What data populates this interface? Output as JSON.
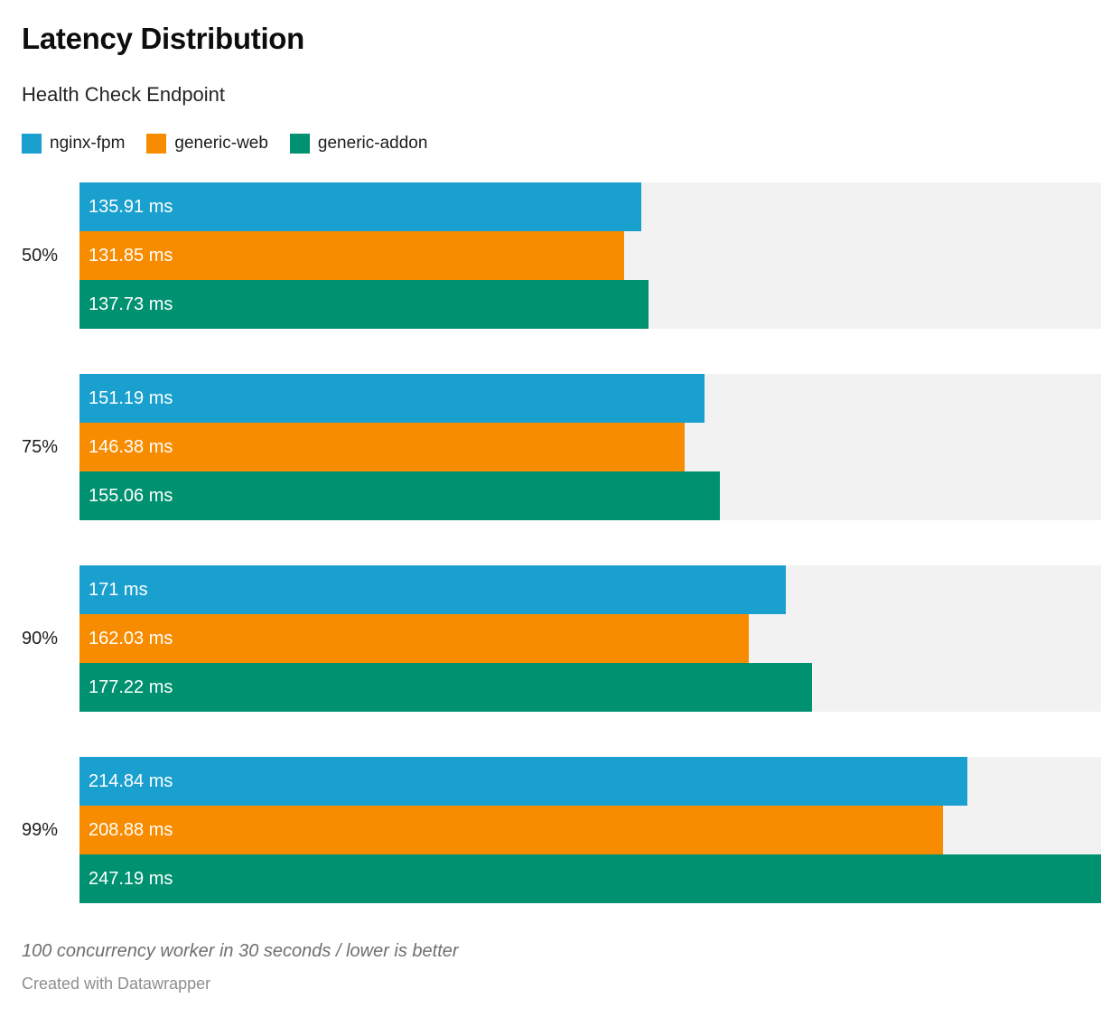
{
  "chart_data": {
    "type": "bar",
    "orientation": "horizontal",
    "title": "Latency Distribution",
    "subtitle": "Health Check Endpoint",
    "categories": [
      "50%",
      "75%",
      "90%",
      "99%"
    ],
    "series": [
      {
        "name": "nginx-fpm",
        "color": "#1aa0ce",
        "values": [
          135.91,
          151.19,
          171.0,
          214.84
        ],
        "labels": [
          "135.91 ms",
          "151.19 ms",
          "171 ms",
          "214.84 ms"
        ]
      },
      {
        "name": "generic-web",
        "color": "#f88c00",
        "values": [
          131.85,
          146.38,
          162.03,
          208.88
        ],
        "labels": [
          "131.85 ms",
          "146.38 ms",
          "162.03 ms",
          "208.88 ms"
        ]
      },
      {
        "name": "generic-addon",
        "color": "#009171",
        "values": [
          137.73,
          155.06,
          177.22,
          247.19
        ],
        "labels": [
          "137.73 ms",
          "155.06 ms",
          "177.22 ms",
          "247.19 ms"
        ]
      }
    ],
    "unit": "ms",
    "xlim": [
      0,
      247.19
    ],
    "legend_position": "top",
    "grid": false,
    "track_color": "#f2f2f2",
    "value_label_color": "#ffffff"
  },
  "footer": {
    "note": "100 concurrency worker in 30 seconds / lower is better",
    "attribution": "Created with Datawrapper"
  }
}
